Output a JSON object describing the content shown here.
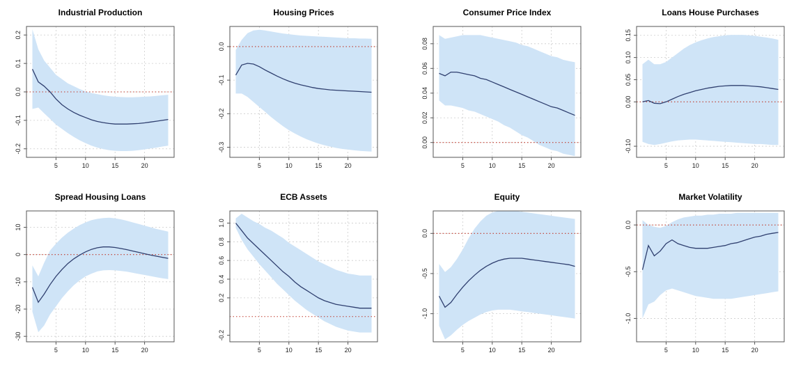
{
  "figure": {
    "x_ticks": [
      5,
      10,
      15,
      20
    ],
    "x_range": [
      0,
      25
    ],
    "colors": {
      "band": "#cfe4f7",
      "line": "#2f3f6f",
      "zero_line": "#c0392b",
      "grid": "#cccccc"
    }
  },
  "chart_data": [
    {
      "type": "area",
      "title": "Industrial Production",
      "y_ticks": [
        -0.2,
        -0.1,
        0.0,
        0.1,
        0.2
      ],
      "y_tick_labels": [
        "-0.2",
        "-0.1",
        "0.0",
        "0.1",
        "0.2"
      ],
      "ylim": [
        -0.23,
        0.23
      ],
      "grid": true,
      "zero_line": 0,
      "x": [
        1,
        2,
        3,
        4,
        5,
        6,
        7,
        8,
        9,
        10,
        11,
        12,
        13,
        14,
        15,
        16,
        17,
        18,
        19,
        20,
        21,
        22,
        23,
        24
      ],
      "median": [
        0.08,
        0.035,
        0.02,
        0.0,
        -0.025,
        -0.045,
        -0.06,
        -0.072,
        -0.082,
        -0.09,
        -0.098,
        -0.104,
        -0.108,
        -0.111,
        -0.113,
        -0.113,
        -0.113,
        -0.112,
        -0.111,
        -0.109,
        -0.106,
        -0.103,
        -0.1,
        -0.097
      ],
      "lower": [
        -0.06,
        -0.055,
        -0.075,
        -0.095,
        -0.115,
        -0.13,
        -0.145,
        -0.158,
        -0.17,
        -0.18,
        -0.189,
        -0.196,
        -0.201,
        -0.205,
        -0.207,
        -0.208,
        -0.208,
        -0.207,
        -0.205,
        -0.202,
        -0.199,
        -0.196,
        -0.192,
        -0.189
      ],
      "upper": [
        0.22,
        0.15,
        0.11,
        0.085,
        0.06,
        0.045,
        0.03,
        0.02,
        0.01,
        0.002,
        -0.004,
        -0.008,
        -0.012,
        -0.015,
        -0.017,
        -0.018,
        -0.019,
        -0.019,
        -0.018,
        -0.017,
        -0.016,
        -0.014,
        -0.012,
        -0.01
      ]
    },
    {
      "type": "area",
      "title": "Housing Prices",
      "y_ticks": [
        -0.3,
        -0.2,
        -0.1,
        0.0
      ],
      "y_tick_labels": [
        "-0.3",
        "-0.2",
        "-0.1",
        "0.0"
      ],
      "ylim": [
        -0.33,
        0.06
      ],
      "grid": true,
      "zero_line": 0,
      "x": [
        1,
        2,
        3,
        4,
        5,
        6,
        7,
        8,
        9,
        10,
        11,
        12,
        13,
        14,
        15,
        16,
        17,
        18,
        19,
        20,
        21,
        22,
        23,
        24
      ],
      "median": [
        -0.085,
        -0.055,
        -0.05,
        -0.052,
        -0.06,
        -0.07,
        -0.079,
        -0.088,
        -0.096,
        -0.103,
        -0.109,
        -0.114,
        -0.118,
        -0.122,
        -0.125,
        -0.127,
        -0.129,
        -0.13,
        -0.131,
        -0.132,
        -0.133,
        -0.134,
        -0.135,
        -0.136
      ],
      "lower": [
        -0.14,
        -0.14,
        -0.15,
        -0.165,
        -0.18,
        -0.195,
        -0.21,
        -0.224,
        -0.237,
        -0.249,
        -0.259,
        -0.268,
        -0.276,
        -0.283,
        -0.289,
        -0.294,
        -0.298,
        -0.302,
        -0.305,
        -0.307,
        -0.309,
        -0.311,
        -0.312,
        -0.313
      ],
      "upper": [
        -0.01,
        0.02,
        0.04,
        0.048,
        0.05,
        0.048,
        0.045,
        0.042,
        0.039,
        0.037,
        0.035,
        0.033,
        0.032,
        0.031,
        0.03,
        0.029,
        0.028,
        0.027,
        0.026,
        0.025,
        0.025,
        0.024,
        0.024,
        0.023
      ]
    },
    {
      "type": "area",
      "title": "Consumer Price Index",
      "y_ticks": [
        0.0,
        0.02,
        0.04,
        0.06,
        0.08
      ],
      "y_tick_labels": [
        "0.00",
        "0.02",
        "0.04",
        "0.06",
        "0.08"
      ],
      "ylim": [
        -0.012,
        0.094
      ],
      "grid": true,
      "zero_line": 0,
      "x": [
        1,
        2,
        3,
        4,
        5,
        6,
        7,
        8,
        9,
        10,
        11,
        12,
        13,
        14,
        15,
        16,
        17,
        18,
        19,
        20,
        21,
        22,
        23,
        24
      ],
      "median": [
        0.056,
        0.054,
        0.057,
        0.057,
        0.056,
        0.055,
        0.054,
        0.052,
        0.051,
        0.049,
        0.047,
        0.045,
        0.043,
        0.041,
        0.039,
        0.037,
        0.035,
        0.033,
        0.031,
        0.029,
        0.028,
        0.026,
        0.024,
        0.022
      ],
      "lower": [
        0.034,
        0.03,
        0.03,
        0.029,
        0.028,
        0.026,
        0.025,
        0.023,
        0.021,
        0.019,
        0.017,
        0.014,
        0.012,
        0.009,
        0.006,
        0.004,
        0.001,
        -0.002,
        -0.004,
        -0.006,
        -0.007,
        -0.009,
        -0.01,
        -0.011
      ],
      "upper": [
        0.087,
        0.084,
        0.085,
        0.086,
        0.087,
        0.087,
        0.087,
        0.087,
        0.086,
        0.085,
        0.084,
        0.083,
        0.082,
        0.081,
        0.079,
        0.078,
        0.076,
        0.074,
        0.072,
        0.07,
        0.069,
        0.067,
        0.066,
        0.065
      ]
    },
    {
      "type": "area",
      "title": "Loans House Purchases",
      "y_ticks": [
        -0.1,
        0.0,
        0.05,
        0.1,
        0.15
      ],
      "y_tick_labels": [
        "-0.10",
        "0.00",
        "0.05",
        "0.10",
        "0.15"
      ],
      "ylim": [
        -0.125,
        0.17
      ],
      "grid": true,
      "zero_line": 0,
      "x": [
        1,
        2,
        3,
        4,
        5,
        6,
        7,
        8,
        9,
        10,
        11,
        12,
        13,
        14,
        15,
        16,
        17,
        18,
        19,
        20,
        21,
        22,
        23,
        24
      ],
      "median": [
        0.0,
        0.003,
        -0.003,
        -0.004,
        0.0,
        0.006,
        0.012,
        0.017,
        0.021,
        0.025,
        0.028,
        0.031,
        0.033,
        0.035,
        0.036,
        0.037,
        0.037,
        0.037,
        0.036,
        0.035,
        0.034,
        0.032,
        0.03,
        0.028
      ],
      "lower": [
        -0.09,
        -0.095,
        -0.097,
        -0.095,
        -0.092,
        -0.089,
        -0.087,
        -0.086,
        -0.085,
        -0.085,
        -0.086,
        -0.087,
        -0.088,
        -0.089,
        -0.09,
        -0.091,
        -0.092,
        -0.093,
        -0.094,
        -0.095,
        -0.095,
        -0.096,
        -0.097,
        -0.097
      ],
      "upper": [
        0.085,
        0.095,
        0.085,
        0.085,
        0.09,
        0.1,
        0.11,
        0.12,
        0.128,
        0.134,
        0.139,
        0.143,
        0.146,
        0.148,
        0.15,
        0.151,
        0.151,
        0.151,
        0.15,
        0.149,
        0.147,
        0.145,
        0.143,
        0.14
      ]
    },
    {
      "type": "area",
      "title": "Spread Housing Loans",
      "y_ticks": [
        -30,
        -20,
        -10,
        0,
        10
      ],
      "y_tick_labels": [
        "-30",
        "-20",
        "-10",
        "0",
        "10"
      ],
      "ylim": [
        -32,
        16
      ],
      "grid": true,
      "zero_line": 0,
      "x": [
        1,
        2,
        3,
        4,
        5,
        6,
        7,
        8,
        9,
        10,
        11,
        12,
        13,
        14,
        15,
        16,
        17,
        18,
        19,
        20,
        21,
        22,
        23,
        24
      ],
      "median": [
        -12,
        -17.5,
        -14.5,
        -11,
        -8,
        -5.5,
        -3.3,
        -1.6,
        -0.2,
        1.0,
        1.9,
        2.5,
        2.8,
        2.8,
        2.6,
        2.2,
        1.8,
        1.3,
        0.8,
        0.3,
        -0.2,
        -0.6,
        -1.0,
        -1.4
      ],
      "lower": [
        -21,
        -28.5,
        -26,
        -22,
        -19,
        -16,
        -13.5,
        -11.3,
        -9.5,
        -8.0,
        -7.0,
        -6.2,
        -5.8,
        -5.7,
        -5.8,
        -6.0,
        -6.3,
        -6.7,
        -7.1,
        -7.5,
        -7.9,
        -8.3,
        -8.7,
        -9.0
      ],
      "upper": [
        -4,
        -8,
        -3,
        1.5,
        4,
        6.2,
        8,
        9.5,
        10.8,
        11.8,
        12.6,
        13.1,
        13.4,
        13.5,
        13.3,
        12.9,
        12.4,
        11.8,
        11.2,
        10.6,
        10.0,
        9.4,
        8.9,
        8.4
      ]
    },
    {
      "type": "area",
      "title": "ECB Assets",
      "y_ticks": [
        0.2,
        0.4,
        0.6,
        0.8,
        1.0
      ],
      "y_tick_labels": [
        "0.2",
        "0.4",
        "0.6",
        "0.8",
        "1.0"
      ],
      "extra_tick_labels": [
        "-0.2"
      ],
      "ylim": [
        -0.27,
        1.13
      ],
      "grid": true,
      "zero_line": 0,
      "x": [
        1,
        2,
        3,
        4,
        5,
        6,
        7,
        8,
        9,
        10,
        11,
        12,
        13,
        14,
        15,
        16,
        17,
        18,
        19,
        20,
        21,
        22,
        23,
        24
      ],
      "median": [
        1.0,
        0.92,
        0.84,
        0.78,
        0.72,
        0.66,
        0.6,
        0.54,
        0.48,
        0.43,
        0.37,
        0.32,
        0.28,
        0.24,
        0.2,
        0.17,
        0.15,
        0.13,
        0.12,
        0.11,
        0.1,
        0.09,
        0.09,
        0.09
      ],
      "lower": [
        0.95,
        0.82,
        0.72,
        0.64,
        0.56,
        0.49,
        0.42,
        0.35,
        0.29,
        0.23,
        0.17,
        0.12,
        0.07,
        0.03,
        -0.01,
        -0.05,
        -0.08,
        -0.11,
        -0.13,
        -0.15,
        -0.16,
        -0.17,
        -0.17,
        -0.17
      ],
      "upper": [
        1.05,
        1.1,
        1.06,
        1.02,
        0.99,
        0.95,
        0.92,
        0.88,
        0.84,
        0.79,
        0.75,
        0.71,
        0.67,
        0.63,
        0.59,
        0.56,
        0.53,
        0.5,
        0.48,
        0.46,
        0.45,
        0.44,
        0.44,
        0.44
      ]
    },
    {
      "type": "area",
      "title": "Equity",
      "y_ticks": [
        -1.0,
        -0.5,
        0.0
      ],
      "y_tick_labels": [
        "-1.0",
        "-0.5",
        "0.0"
      ],
      "ylim": [
        -1.35,
        0.28
      ],
      "grid": true,
      "zero_line": 0,
      "x": [
        1,
        2,
        3,
        4,
        5,
        6,
        7,
        8,
        9,
        10,
        11,
        12,
        13,
        14,
        15,
        16,
        17,
        18,
        19,
        20,
        21,
        22,
        23,
        24
      ],
      "median": [
        -0.78,
        -0.92,
        -0.86,
        -0.76,
        -0.67,
        -0.59,
        -0.52,
        -0.46,
        -0.41,
        -0.37,
        -0.34,
        -0.32,
        -0.31,
        -0.31,
        -0.31,
        -0.32,
        -0.33,
        -0.34,
        -0.35,
        -0.36,
        -0.37,
        -0.38,
        -0.39,
        -0.41
      ],
      "lower": [
        -1.15,
        -1.32,
        -1.27,
        -1.2,
        -1.14,
        -1.09,
        -1.05,
        -1.01,
        -0.98,
        -0.96,
        -0.95,
        -0.95,
        -0.95,
        -0.96,
        -0.97,
        -0.98,
        -0.99,
        -1.0,
        -1.01,
        -1.02,
        -1.03,
        -1.04,
        -1.05,
        -1.06
      ],
      "upper": [
        -0.38,
        -0.48,
        -0.42,
        -0.32,
        -0.2,
        -0.06,
        0.06,
        0.15,
        0.22,
        0.26,
        0.28,
        0.29,
        0.29,
        0.28,
        0.27,
        0.26,
        0.25,
        0.24,
        0.23,
        0.22,
        0.21,
        0.2,
        0.19,
        0.18
      ]
    },
    {
      "type": "area",
      "title": "Market Volatility",
      "y_ticks": [
        -1.0,
        -0.5,
        0.0
      ],
      "y_tick_labels": [
        "-1.0",
        "-0.5",
        "0.0"
      ],
      "ylim": [
        -1.25,
        0.15
      ],
      "grid": true,
      "zero_line": 0,
      "x": [
        1,
        2,
        3,
        4,
        5,
        6,
        7,
        8,
        9,
        10,
        11,
        12,
        13,
        14,
        15,
        16,
        17,
        18,
        19,
        20,
        21,
        22,
        23,
        24
      ],
      "median": [
        -0.48,
        -0.22,
        -0.33,
        -0.28,
        -0.2,
        -0.16,
        -0.2,
        -0.22,
        -0.24,
        -0.25,
        -0.25,
        -0.25,
        -0.24,
        -0.23,
        -0.22,
        -0.2,
        -0.19,
        -0.17,
        -0.15,
        -0.13,
        -0.12,
        -0.1,
        -0.09,
        -0.08
      ],
      "lower": [
        -1.0,
        -0.85,
        -0.82,
        -0.75,
        -0.7,
        -0.68,
        -0.7,
        -0.72,
        -0.74,
        -0.76,
        -0.77,
        -0.78,
        -0.79,
        -0.79,
        -0.79,
        -0.79,
        -0.78,
        -0.77,
        -0.76,
        -0.75,
        -0.74,
        -0.73,
        -0.72,
        -0.71
      ],
      "upper": [
        0.05,
        0.0,
        -0.02,
        -0.03,
        -0.01,
        0.03,
        0.06,
        0.08,
        0.09,
        0.1,
        0.1,
        0.11,
        0.11,
        0.12,
        0.12,
        0.12,
        0.13,
        0.13,
        0.13,
        0.13,
        0.13,
        0.13,
        0.13,
        0.13
      ]
    }
  ]
}
